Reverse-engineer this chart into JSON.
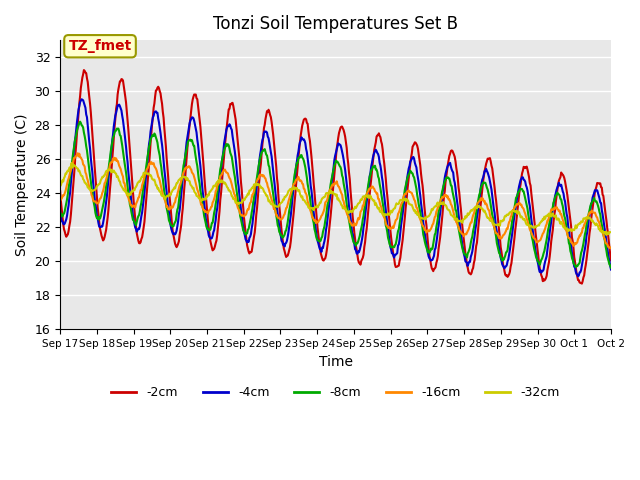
{
  "title": "Tonzi Soil Temperatures Set B",
  "xlabel": "Time",
  "ylabel": "Soil Temperature (C)",
  "ylim": [
    16,
    33
  ],
  "yticks": [
    16,
    18,
    20,
    22,
    24,
    26,
    28,
    30,
    32
  ],
  "xtick_labels": [
    "Sep 17",
    "Sep 18",
    "Sep 19",
    "Sep 20",
    "Sep 21",
    "Sep 22",
    "Sep 23",
    "Sep 24",
    "Sep 25",
    "Sep 26",
    "Sep 27",
    "Sep 28",
    "Sep 29",
    "Sep 30",
    "Oct 1",
    "Oct 2"
  ],
  "series_colors": [
    "#cc0000",
    "#0000cc",
    "#00aa00",
    "#ff8800",
    "#cccc00"
  ],
  "series_labels": [
    "-2cm",
    "-4cm",
    "-8cm",
    "-16cm",
    "-32cm"
  ],
  "series_linewidths": [
    1.5,
    1.5,
    1.5,
    1.5,
    1.5
  ],
  "bg_color": "#e8e8e8",
  "annotation_text": "TZ_fmet",
  "annotation_color": "#cc0000",
  "annotation_bg": "#ffffcc",
  "annotation_border": "#999900"
}
